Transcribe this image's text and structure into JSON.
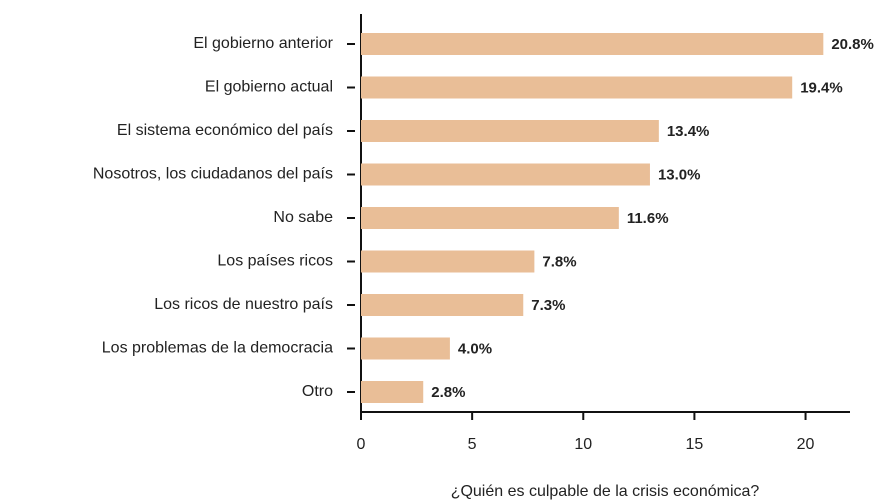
{
  "chart_data": {
    "type": "barh",
    "xlabel": "¿Quién es culpable de la crisis económica?",
    "categories": [
      "El gobierno anterior",
      "El gobierno actual",
      "El sistema económico del país",
      "Nosotros, los ciudadanos del país",
      "No sabe",
      "Los países ricos",
      "Los ricos de nuestro país",
      "Los problemas de la democracia",
      "Otro"
    ],
    "values": [
      20.8,
      19.4,
      13.4,
      13.0,
      11.6,
      7.8,
      7.3,
      4.0,
      2.8
    ],
    "value_labels": [
      "20.8%",
      "19.4%",
      "13.4%",
      "13.0%",
      "11.6%",
      "7.8%",
      "7.3%",
      "4.0%",
      "2.8%"
    ],
    "color": "#e9be97",
    "xlim": [
      0,
      22
    ],
    "xticks": [
      0,
      5,
      10,
      15,
      20
    ],
    "grid": false
  }
}
